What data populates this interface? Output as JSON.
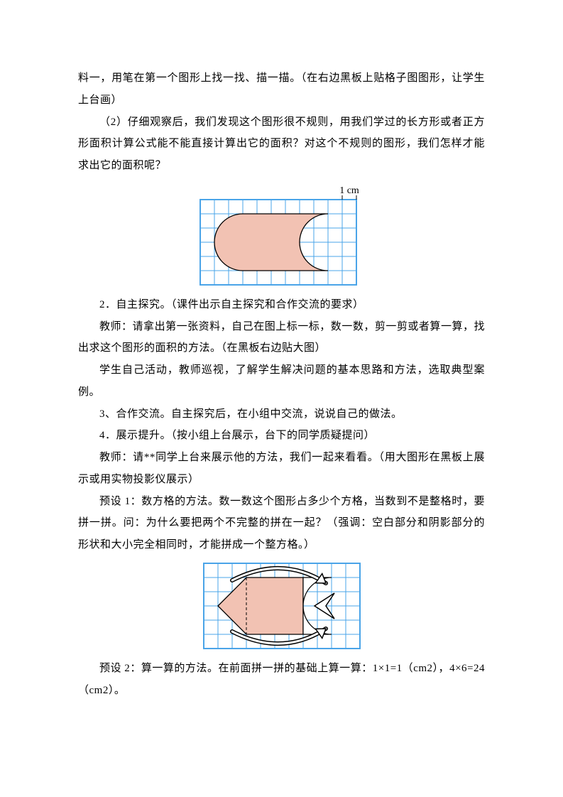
{
  "p1": "料一，用笔在第一个图形上找一找、描一描。（在右边黑板上贴格子图图形，让学生上台画）",
  "p2": "（2）仔细观察后，我们发现这个图形很不规则，用我们学过的长方形或者正方形面积计算公式能不能直接计算出它的面积？对这个不规则的图形，我们怎样才能求出它的面积呢？",
  "p3": "2．自主探究。（课件出示自主探究和合作交流的要求）",
  "p4": "教师：请拿出第一张资料，自己在图上标一标，数一数，剪一剪或者算一算，找出求这个图形的面积的方法。（在黑板右边贴大图）",
  "p5": "学生自己活动，教师巡视，了解学生解决问题的基本思路和方法，选取典型案例。",
  "p6": "3、合作交流。自主探究后，在小组中交流，说说自己的做法。",
  "p7": "4．展示提升。（按小组上台展示，台下的同学质疑提问）",
  "p8": "教师：请**同学上台来展示他的方法，我们一起来看看。（用大图形在黑板上展示或用实物投影仪展示）",
  "p9": "预设 1：数方格的方法。数一数这个图形占多少个方格，当数到不是整格时，要拼一拼。问：为什么要把两个不完整的拼在一起？（强调：空白部分和阴影部分的形状和大小完全相同时，才能拼成一个整方格。）",
  "p10": "预设 2：算一算的方法。在前面拼一拼的基础上算一算：1×1=1（cm2），4×6=24（cm2）。",
  "fig1": {
    "cols": 11,
    "rows": 6,
    "cell": 20,
    "label": "1 cm",
    "grid_color": "#4aa4e8",
    "fill_color": "#f2c2b3",
    "outline_color": "#000000",
    "label_color": "#000000",
    "label_fontsize": 14,
    "frame_width": 2
  },
  "fig2": {
    "cols": 11,
    "rows": 6,
    "cell": 20,
    "grid_color": "#4aa4e8",
    "fill_color": "#f2c2b3",
    "outline_color": "#000000",
    "arrow_color": "#000000",
    "arrow_fill": "#ffffff",
    "dash_color": "#000000",
    "frame_width": 2
  }
}
